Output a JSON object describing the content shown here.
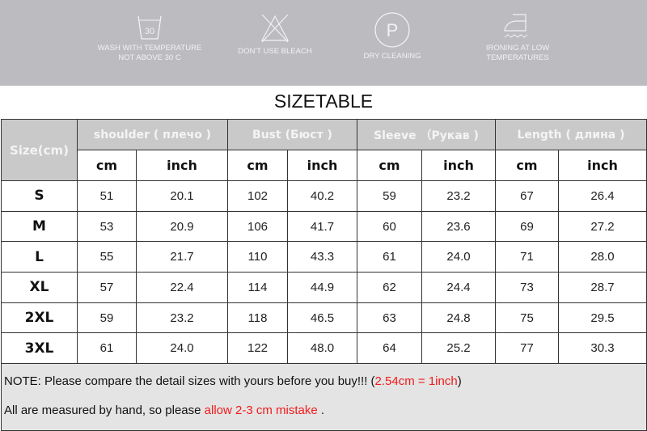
{
  "care_labels": [
    {
      "icon": "wash-30-icon",
      "number": "30",
      "text": [
        "WASH WITH TEMPERATURE",
        "NOT ABOVE 30 C"
      ]
    },
    {
      "icon": "no-bleach-icon",
      "text": [
        "DON'T USE BLEACH"
      ]
    },
    {
      "icon": "dry-clean-icon",
      "letter": "P",
      "text": [
        "DRY CLEANING"
      ]
    },
    {
      "icon": "iron-low-icon",
      "text": [
        "IRONING AT LOW",
        "TEMPERATURES"
      ]
    }
  ],
  "title": "SIZETABLE",
  "table": {
    "size_header": "Size(cm)",
    "groups": [
      "shoulder ( плечо )",
      "Bust (Бюст )",
      "Sleeve （Рукав )",
      "Length ( длина )"
    ],
    "units": [
      "cm",
      "inch",
      "cm",
      "inch",
      "cm",
      "inch",
      "cm",
      "inch"
    ],
    "rows": [
      [
        "S",
        "51",
        "20.1",
        "102",
        "40.2",
        "59",
        "23.2",
        "67",
        "26.4"
      ],
      [
        "M",
        "53",
        "20.9",
        "106",
        "41.7",
        "60",
        "23.6",
        "69",
        "27.2"
      ],
      [
        "L",
        "55",
        "21.7",
        "110",
        "43.3",
        "61",
        "24.0",
        "71",
        "28.0"
      ],
      [
        "XL",
        "57",
        "22.4",
        "114",
        "44.9",
        "62",
        "24.4",
        "73",
        "28.7"
      ],
      [
        "2XL",
        "59",
        "23.2",
        "118",
        "46.5",
        "63",
        "24.8",
        "75",
        "29.5"
      ],
      [
        "3XL",
        "61",
        "24.0",
        "122",
        "48.0",
        "64",
        "25.2",
        "77",
        "30.3"
      ]
    ]
  },
  "notes": {
    "line1": "NOTE: Please compare the detail sizes with yours before you buy!!! (",
    "line1_red": "2.54cm = 1inch",
    "line1_end": ")",
    "line2": "All are measured by hand, so please ",
    "line2_red": "allow 2-3 cm mistake",
    "line2_end": " ."
  },
  "colors": {
    "banner": "#bcbbc0",
    "header": "#c9c9c9",
    "note_bg": "#e4e4e4",
    "accent_red": "#f21b1b"
  }
}
